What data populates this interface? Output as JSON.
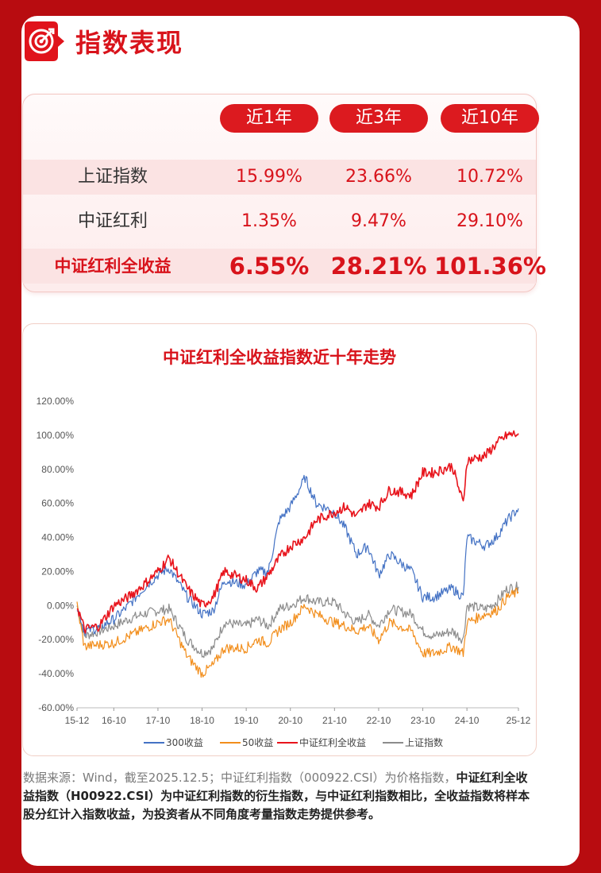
{
  "header": {
    "title": "指数表现",
    "icon": "target-icon"
  },
  "table": {
    "columns": [
      "近1年",
      "近3年",
      "近10年"
    ],
    "rows": [
      {
        "name": "上证指数",
        "values": [
          "15.99%",
          "23.66%",
          "10.72%"
        ]
      },
      {
        "name": "中证红利",
        "values": [
          "1.35%",
          "9.47%",
          "29.10%"
        ]
      },
      {
        "name": "中证红利全收益",
        "values": [
          "6.55%",
          "28.21%",
          "101.36%"
        ],
        "highlight": true
      }
    ]
  },
  "chart_data": {
    "type": "line",
    "title": "中证红利全收益指数近十年走势",
    "x_ticks": [
      "15-12",
      "16-10",
      "17-10",
      "18-10",
      "19-10",
      "20-10",
      "21-10",
      "22-10",
      "23-10",
      "24-10",
      "25-12"
    ],
    "y_ticks": [
      "120.00%",
      "100.00%",
      "80.00%",
      "60.00%",
      "40.00%",
      "20.00%",
      "0.00%",
      "-20.00%",
      "-40.00%",
      "-60.00%"
    ],
    "ylim": [
      -60,
      120
    ],
    "legend_position": "bottom",
    "series": [
      {
        "name": "300收益",
        "color": "#4472c4",
        "x": [
          "2015-12",
          "2016-02",
          "2016-06",
          "2016-10",
          "2017-02",
          "2017-06",
          "2017-10",
          "2018-01",
          "2018-06",
          "2018-10",
          "2019-01",
          "2019-04",
          "2019-10",
          "2020-01",
          "2020-04",
          "2020-07",
          "2020-10",
          "2021-02",
          "2021-05",
          "2021-10",
          "2022-01",
          "2022-04",
          "2022-07",
          "2022-10",
          "2023-01",
          "2023-07",
          "2023-10",
          "2024-01",
          "2024-06",
          "2024-09",
          "2024-10",
          "2025-03",
          "2025-06",
          "2025-09",
          "2025-12"
        ],
        "values": [
          0,
          -15,
          -13,
          -8,
          0,
          10,
          18,
          22,
          5,
          -5,
          -3,
          15,
          12,
          20,
          20,
          50,
          58,
          75,
          60,
          55,
          45,
          30,
          35,
          18,
          30,
          20,
          5,
          5,
          10,
          5,
          40,
          35,
          40,
          50,
          57
        ]
      },
      {
        "name": "50收益",
        "color": "#f28e1c",
        "x": [
          "2015-12",
          "2016-02",
          "2016-06",
          "2016-10",
          "2017-02",
          "2017-06",
          "2017-10",
          "2018-01",
          "2018-06",
          "2018-10",
          "2019-01",
          "2019-04",
          "2019-10",
          "2020-01",
          "2020-04",
          "2020-07",
          "2020-10",
          "2021-02",
          "2021-05",
          "2021-10",
          "2022-01",
          "2022-04",
          "2022-07",
          "2022-10",
          "2023-01",
          "2023-07",
          "2023-10",
          "2024-01",
          "2024-06",
          "2024-09",
          "2024-10",
          "2025-03",
          "2025-06",
          "2025-09",
          "2025-12"
        ],
        "values": [
          0,
          -24,
          -23,
          -22,
          -18,
          -14,
          -10,
          -8,
          -30,
          -40,
          -35,
          -25,
          -25,
          -20,
          -22,
          -14,
          -10,
          0,
          -5,
          -10,
          -12,
          -15,
          -12,
          -20,
          -10,
          -15,
          -28,
          -28,
          -24,
          -28,
          -10,
          -5,
          -3,
          5,
          8
        ]
      },
      {
        "name": "中证红利全收益",
        "color": "#e8141c",
        "x": [
          "2015-12",
          "2016-02",
          "2016-06",
          "2016-10",
          "2017-02",
          "2017-06",
          "2017-10",
          "2018-01",
          "2018-06",
          "2018-10",
          "2019-01",
          "2019-04",
          "2019-10",
          "2020-01",
          "2020-04",
          "2020-07",
          "2020-10",
          "2021-02",
          "2021-05",
          "2021-10",
          "2022-01",
          "2022-04",
          "2022-07",
          "2022-10",
          "2023-01",
          "2023-07",
          "2023-10",
          "2024-01",
          "2024-06",
          "2024-09",
          "2024-10",
          "2025-03",
          "2025-06",
          "2025-09",
          "2025-12"
        ],
        "values": [
          0,
          -14,
          -12,
          0,
          5,
          12,
          20,
          28,
          10,
          0,
          5,
          20,
          15,
          10,
          18,
          28,
          35,
          40,
          50,
          55,
          58,
          52,
          60,
          58,
          68,
          65,
          78,
          78,
          82,
          60,
          85,
          88,
          95,
          100,
          101
        ]
      },
      {
        "name": "上证指数",
        "color": "#8c8c8c",
        "x": [
          "2015-12",
          "2016-02",
          "2016-06",
          "2016-10",
          "2017-02",
          "2017-06",
          "2017-10",
          "2018-01",
          "2018-06",
          "2018-10",
          "2019-01",
          "2019-04",
          "2019-10",
          "2020-01",
          "2020-04",
          "2020-07",
          "2020-10",
          "2021-02",
          "2021-05",
          "2021-10",
          "2022-01",
          "2022-04",
          "2022-07",
          "2022-10",
          "2023-01",
          "2023-07",
          "2023-10",
          "2024-01",
          "2024-06",
          "2024-09",
          "2024-10",
          "2025-03",
          "2025-06",
          "2025-09",
          "2025-12"
        ],
        "values": [
          0,
          -18,
          -15,
          -12,
          -8,
          -5,
          -3,
          -2,
          -20,
          -28,
          -25,
          -10,
          -12,
          -8,
          -12,
          -2,
          0,
          5,
          2,
          2,
          -5,
          -10,
          -5,
          -12,
          -2,
          -5,
          -15,
          -18,
          -15,
          -20,
          0,
          -2,
          2,
          10,
          11
        ]
      }
    ]
  },
  "footnote": {
    "line_gray": "数据来源：Wind，截至2025.12.5；中证红利指数（000922.CSI）为价格指数，",
    "line_bold": "中证红利全收益指数（H00922.CSI）为中证红利指数的衍生指数，与中证红利指数相比，全收益指数将样本股分红计入指数收益，为投资者从不同角度考量指数走势提供参考。"
  }
}
